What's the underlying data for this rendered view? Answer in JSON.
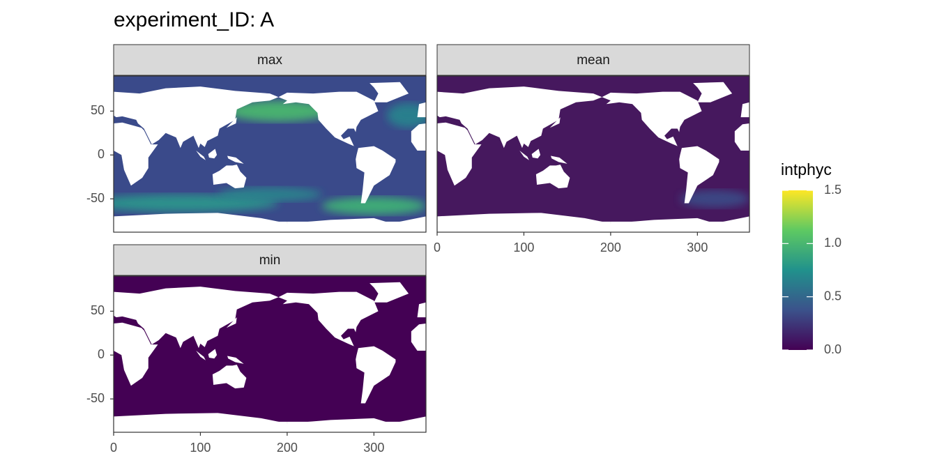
{
  "chart_data": {
    "type": "raster",
    "title": "experiment_ID: A",
    "facets": [
      "max",
      "mean",
      "min"
    ],
    "xlim": [
      0,
      360
    ],
    "ylim": [
      -88,
      90
    ],
    "xticks": [
      0,
      100,
      200,
      300
    ],
    "yticks": [
      -50,
      0,
      50
    ],
    "grid": true,
    "legend": {
      "title": "intphyc",
      "colors": [
        "#440154",
        "#3b528b",
        "#21918c",
        "#5ec962",
        "#fde725"
      ],
      "lim": [
        0,
        1.5
      ],
      "ticks": [
        {
          "value": 0,
          "label": "0.0"
        },
        0.5,
        {
          "value": 1,
          "label": "1.0"
        },
        1.5
      ]
    }
  }
}
